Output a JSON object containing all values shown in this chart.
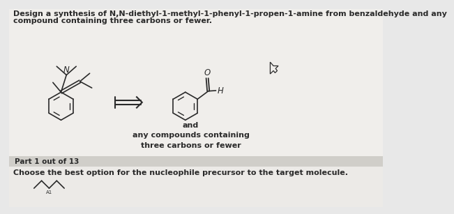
{
  "bg_color": "#e8e8e8",
  "content_bg": "#f0eeeb",
  "gray_bar_color": "#d0cec9",
  "bottom_bg": "#eceae7",
  "title_line1": "Design a synthesis of N,N-diethyl-1-methyl-1-phenyl-1-propen-1-amine from benzaldehyde and any",
  "title_line2": "compound containing three carbons or fewer.",
  "part_text": "Part 1 out of 13",
  "choose_text": "Choose the best option for the nucleophile precursor to the target molecule.",
  "and_text": "and",
  "any_text": "any compounds containing\nthree carbons or fewer",
  "lc": "#2a2a2a",
  "title_fontsize": 8.0,
  "label_fontsize": 8.0,
  "part_fontsize": 7.5
}
